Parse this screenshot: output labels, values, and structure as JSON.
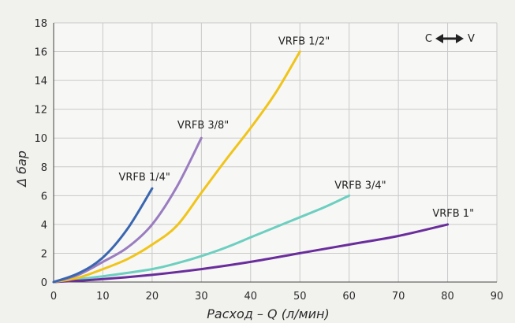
{
  "chart_data": {
    "type": "line",
    "title": "",
    "xlabel": "Расход – Q (л/мин)",
    "ylabel": "Δ бар",
    "xlim": [
      0,
      90
    ],
    "ylim": [
      0,
      18
    ],
    "xticks": [
      0,
      10,
      20,
      30,
      40,
      50,
      60,
      70,
      80,
      90
    ],
    "yticks": [
      0,
      2,
      4,
      6,
      8,
      10,
      12,
      14,
      16,
      18
    ],
    "xtick_labels": [
      "0",
      "10",
      "20",
      "30",
      "40",
      "50",
      "60",
      "70",
      "80",
      "90"
    ],
    "ytick_labels": [
      "0",
      "2",
      "4",
      "6",
      "8",
      "10",
      "12",
      "14",
      "16",
      "18"
    ],
    "grid": true,
    "legend": {
      "left": "C",
      "right": "V",
      "placement": "top-right"
    },
    "series": [
      {
        "name": "VRFB 1/4\"",
        "color": "#3a66b0",
        "x": [
          0,
          5,
          10,
          15,
          20
        ],
        "y": [
          0,
          0.6,
          1.7,
          3.7,
          6.5
        ]
      },
      {
        "name": "VRFB 3/8\"",
        "color": "#9a7cc0",
        "x": [
          0,
          5,
          10,
          15,
          20,
          25,
          30
        ],
        "y": [
          0,
          0.5,
          1.4,
          2.4,
          4.0,
          6.6,
          10.0
        ]
      },
      {
        "name": "VRFB 1/2\"",
        "color": "#f0c419",
        "x": [
          0,
          5,
          10,
          15,
          20,
          25,
          30,
          35,
          40,
          45,
          50
        ],
        "y": [
          0,
          0.3,
          0.9,
          1.6,
          2.6,
          3.9,
          6.2,
          8.5,
          10.7,
          13.1,
          16.0
        ]
      },
      {
        "name": "VRFB 3/4\"",
        "color": "#6ccfc0",
        "x": [
          0,
          10,
          20,
          25,
          30,
          35,
          40,
          45,
          50,
          55,
          60
        ],
        "y": [
          0,
          0.4,
          0.9,
          1.3,
          1.8,
          2.4,
          3.1,
          3.8,
          4.5,
          5.2,
          6.0
        ]
      },
      {
        "name": "VRFB 1\"",
        "color": "#6a2d9c",
        "x": [
          0,
          10,
          20,
          30,
          40,
          50,
          60,
          70,
          80
        ],
        "y": [
          0,
          0.2,
          0.5,
          0.9,
          1.4,
          2.0,
          2.6,
          3.2,
          4.0
        ]
      }
    ]
  }
}
